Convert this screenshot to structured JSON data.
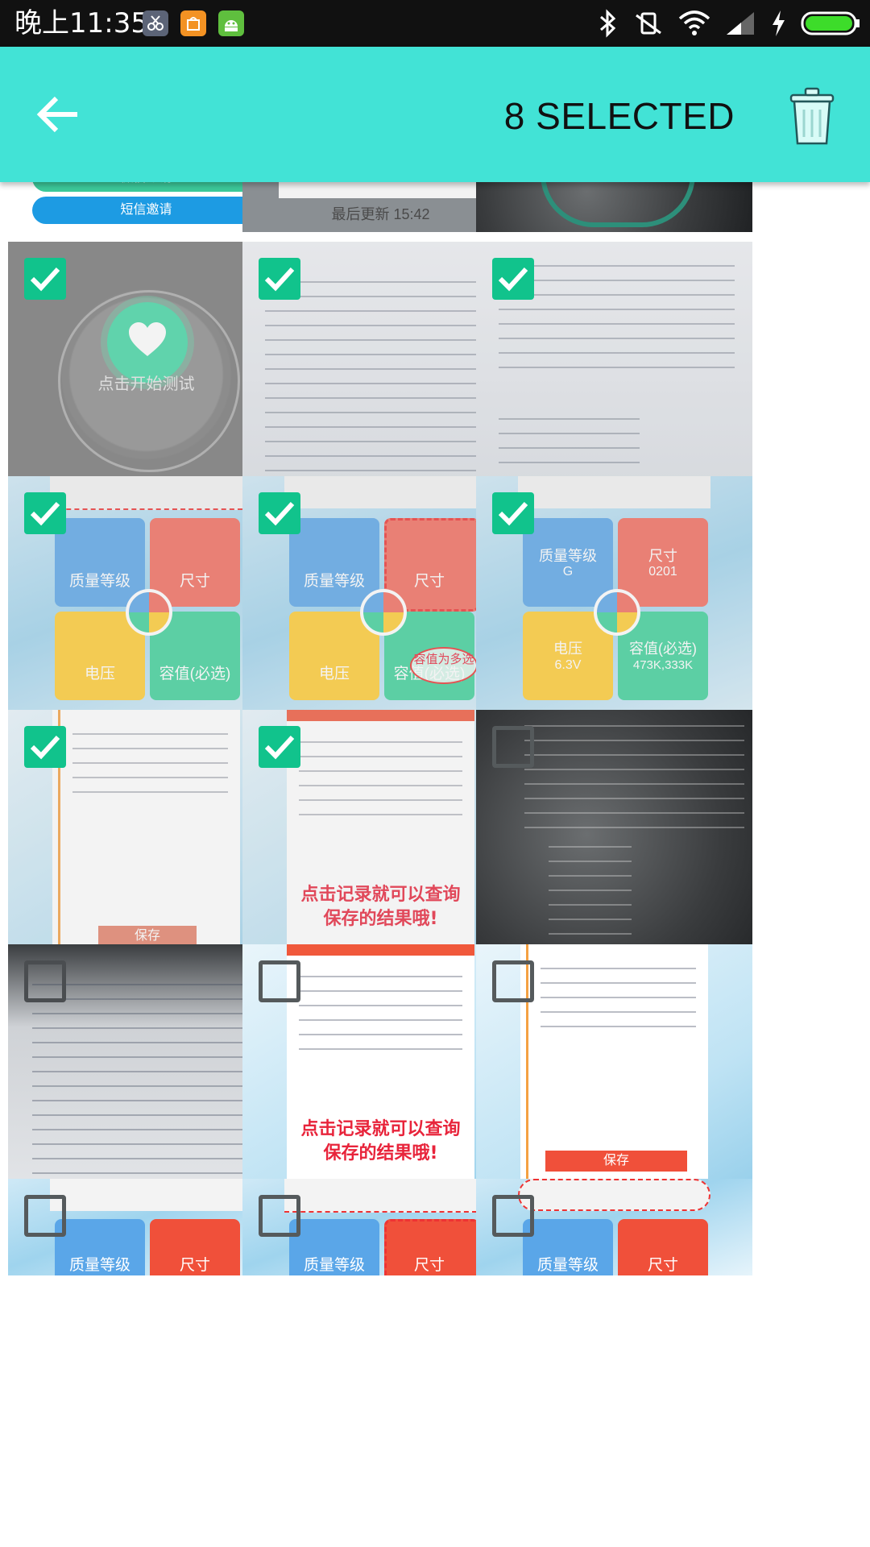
{
  "status_bar": {
    "time": "晚上11:35",
    "icons": [
      "scissors-app-icon",
      "mi-store-icon",
      "android-icon",
      "bluetooth-icon",
      "vibrate-off-icon",
      "wifi-icon",
      "signal-icon",
      "charging-icon",
      "battery-icon"
    ]
  },
  "app_bar": {
    "back_icon": "arrow-left-icon",
    "title": "8 SELECTED",
    "delete_icon": "trash-icon",
    "background_color": "#42e3d6"
  },
  "grid": {
    "columns": 3,
    "tiles": [
      {
        "id": "top-left",
        "selected": false,
        "partial": true,
        "kind": "share-buttons",
        "texts": [
          "微信邀请",
          "短信邀请"
        ]
      },
      {
        "id": "top-mid",
        "selected": false,
        "partial": true,
        "kind": "sync-screen",
        "texts": [
          "最后更新 15:42"
        ]
      },
      {
        "id": "top-right",
        "selected": false,
        "partial": true,
        "kind": "dark-watch",
        "texts": []
      },
      {
        "id": "r1c1",
        "selected": true,
        "kind": "watch",
        "texts": [
          "点击开始测试"
        ]
      },
      {
        "id": "r1c2",
        "selected": true,
        "kind": "doc-photo",
        "texts": []
      },
      {
        "id": "r1c3",
        "selected": true,
        "kind": "doc-photo",
        "texts": []
      },
      {
        "id": "r2c1",
        "selected": true,
        "kind": "app-quad",
        "texts": [
          "质量等级",
          "尺寸",
          "电压",
          "容值(必选)"
        ]
      },
      {
        "id": "r2c2",
        "selected": true,
        "kind": "app-quad",
        "texts": [
          "质量等级",
          "尺寸",
          "电压",
          "容值(必选)",
          "容值为多选"
        ]
      },
      {
        "id": "r2c3",
        "selected": true,
        "kind": "app-quad",
        "texts": [
          "质量等级",
          "尺寸",
          "电压",
          "容值(必选)",
          "G",
          "0201",
          "6.3V",
          "473K,333K"
        ]
      },
      {
        "id": "r3c1",
        "selected": true,
        "kind": "list-screen",
        "texts": [
          "保存"
        ]
      },
      {
        "id": "r3c2",
        "selected": true,
        "kind": "record-screen",
        "texts": [
          "点击记录就可以查询保存的结果哦!"
        ]
      },
      {
        "id": "r3c3",
        "selected": false,
        "kind": "dark-doc",
        "texts": []
      },
      {
        "id": "r4c1",
        "selected": false,
        "kind": "dark-doc",
        "texts": []
      },
      {
        "id": "r4c2",
        "selected": false,
        "kind": "record-screen",
        "texts": [
          "点击记录就可以查询保存的结果哦!"
        ]
      },
      {
        "id": "r4c3",
        "selected": false,
        "kind": "list-screen",
        "texts": [
          "保存"
        ]
      },
      {
        "id": "r5c1",
        "selected": false,
        "partial": true,
        "kind": "app-quad",
        "texts": [
          "质量等级",
          "尺寸"
        ]
      },
      {
        "id": "r5c2",
        "selected": false,
        "partial": true,
        "kind": "app-quad",
        "texts": [
          "质量等级",
          "尺寸"
        ]
      },
      {
        "id": "r5c3",
        "selected": false,
        "partial": true,
        "kind": "app-quad",
        "texts": [
          "质量等级",
          "尺寸"
        ]
      }
    ]
  }
}
